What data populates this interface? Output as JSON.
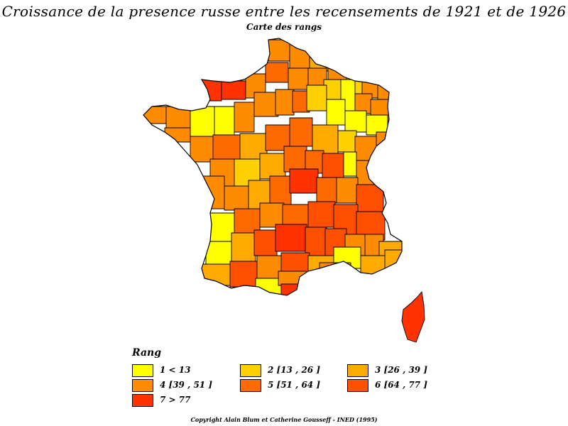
{
  "title": "Croissance de la presence russe entre les recensements de 1921 et de 1926",
  "subtitle": "Carte des rangs",
  "legend": {
    "title": "Rang",
    "items": [
      {
        "label": "1  <  13",
        "color": "#ffff00"
      },
      {
        "label": "2 [13 , 26 ]",
        "color": "#ffd000"
      },
      {
        "label": "3 [26 , 39 ]",
        "color": "#ffaa00"
      },
      {
        "label": "4 [39 , 51 ]",
        "color": "#ff8c00"
      },
      {
        "label": "5 [51 , 64 ]",
        "color": "#ff6a00"
      },
      {
        "label": "6 [64 , 77 ]",
        "color": "#ff5000"
      },
      {
        "label": "7  >  77",
        "color": "#ff3300"
      }
    ]
  },
  "copyright": "Copyright Alain Blum et Catherine Gousseff  -  INED (1995)"
}
